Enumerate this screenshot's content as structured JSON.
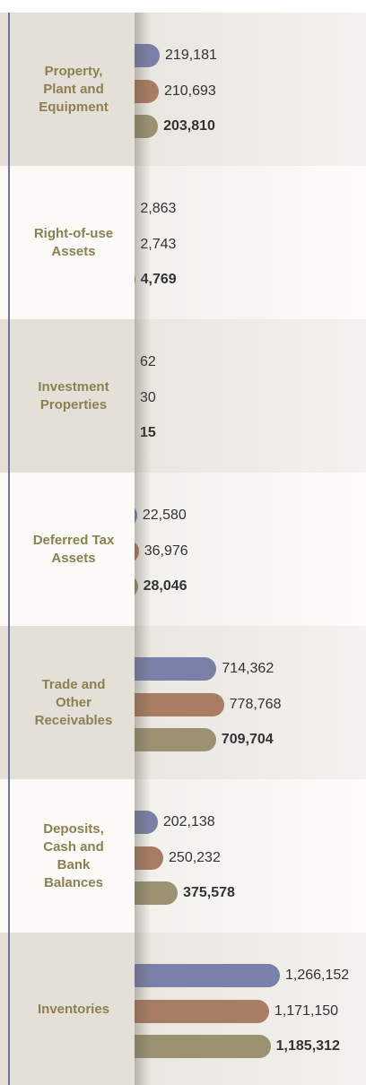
{
  "chart_data": {
    "type": "bar",
    "orientation": "horizontal",
    "categories": [
      "Property, Plant and Equipment",
      "Right-of-use Assets",
      "Investment Properties",
      "Deferred Tax Assets",
      "Trade and Other Receivables",
      "Deposits, Cash and Bank Balances",
      "Inventories"
    ],
    "series": [
      {
        "color": "#7a80a8",
        "values": [
          219181,
          2863,
          62,
          22580,
          714362,
          202138,
          1266152
        ],
        "value_labels": [
          "219,181",
          "2,863",
          "62",
          "22,580",
          "714,362",
          "202,138",
          "1,266,152"
        ]
      },
      {
        "color": "#a87d63",
        "values": [
          210693,
          2743,
          30,
          36976,
          778768,
          250232,
          1171150
        ],
        "value_labels": [
          "210,693",
          "2,743",
          "30",
          "36,976",
          "778,768",
          "250,232",
          "1,171,150"
        ]
      },
      {
        "color": "#9b9272",
        "values": [
          203810,
          4769,
          15,
          28046,
          709704,
          375578,
          1185312
        ],
        "value_labels": [
          "203,810",
          "4,769",
          "15",
          "28,046",
          "709,704",
          "375,578",
          "1,185,312"
        ],
        "bold_labels": true
      }
    ]
  }
}
